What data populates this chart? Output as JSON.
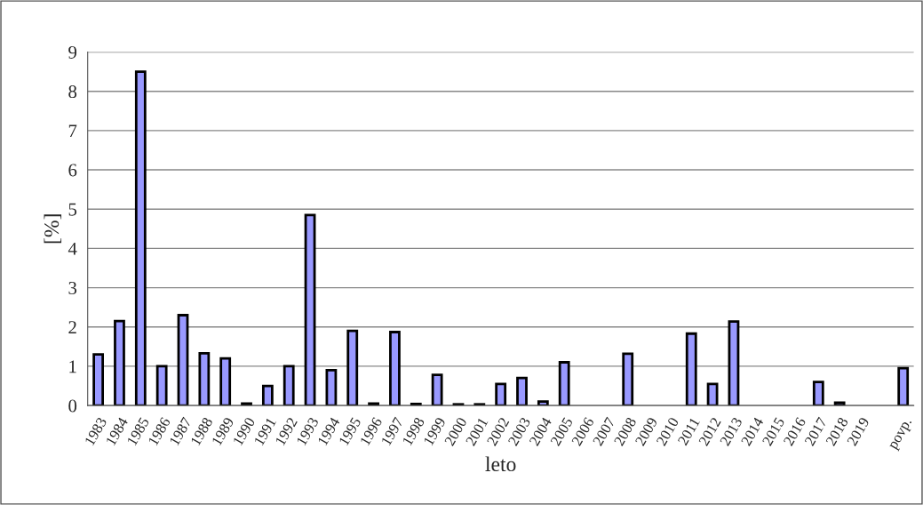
{
  "chart_data": {
    "type": "bar",
    "xlabel": "leto",
    "ylabel": "[%]",
    "categories": [
      "1983",
      "1984",
      "1985",
      "1986",
      "1987",
      "1988",
      "1989",
      "1990",
      "1991",
      "1992",
      "1993",
      "1994",
      "1995",
      "1996",
      "1997",
      "1998",
      "1999",
      "2000",
      "2001",
      "2002",
      "2003",
      "2004",
      "2005",
      "2006",
      "2007",
      "2008",
      "2009",
      "2010",
      "2011",
      "2012",
      "2013",
      "2014",
      "2015",
      "2016",
      "2017",
      "2018",
      "2019",
      null,
      "povp."
    ],
    "values": [
      1.3,
      2.15,
      8.5,
      1.0,
      2.3,
      1.33,
      1.2,
      0.05,
      0.5,
      1.0,
      4.85,
      0.9,
      1.9,
      0.05,
      1.87,
      0.04,
      0.78,
      0.03,
      0.03,
      0.55,
      0.7,
      0.1,
      1.1,
      null,
      null,
      1.32,
      null,
      null,
      1.83,
      0.55,
      2.14,
      null,
      null,
      null,
      0.6,
      0.07,
      null,
      null,
      0.95
    ],
    "color": "#9999ff",
    "ylim": [
      0,
      9
    ],
    "yticks": [
      0,
      1,
      2,
      3,
      4,
      5,
      6,
      7,
      8,
      9
    ],
    "grid": "y",
    "legend": false
  }
}
